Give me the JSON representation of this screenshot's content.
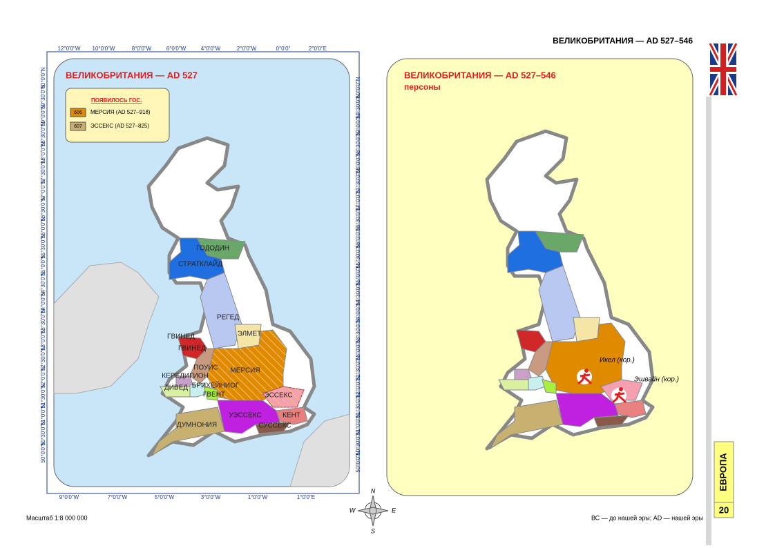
{
  "header": {
    "title": "ВЕЛИКОБРИТАНИЯ — AD 527–546"
  },
  "left_map": {
    "title": "ВЕЛИКОБРИТАНИЯ — AD 527",
    "legend": {
      "title": "ПОЯВИЛОСЬ ГОС.",
      "items": [
        {
          "code": "606",
          "label": "МЕРСИЯ (AD 527–918)"
        },
        {
          "code": "607",
          "label": "ЭССЕКС (AD 527–825)"
        }
      ]
    },
    "regions": [
      "ГОДОДИН",
      "СТРАТКЛАЙД",
      "РЕГЕД",
      "ЭЛМЕТ",
      "ГВИНЕД",
      "ПОУИС",
      "КЕРЕДИГИОН",
      "ДИВЕД",
      "БРИХЕЙНИОГ",
      "ГВЕНТ",
      "МЕРСИЯ",
      "ЭССЕКС",
      "УЭССЕКС",
      "КЕНТ",
      "СУССЕКС",
      "ДУМНОНИЯ"
    ],
    "top_longitudes": [
      "12°0'0\"W",
      "10°0'0\"W",
      "8°0'0\"W",
      "6°0'0\"W",
      "4°0'0\"W",
      "2°0'0\"W",
      "0°0'0\"",
      "2°0'0\"E"
    ],
    "bottom_longitudes": [
      "9°0'0\"W",
      "7°0'0\"W",
      "5°0'0\"W",
      "3°0'0\"W",
      "1°0'0\"W",
      "1°0'0\"E"
    ],
    "latitudes": [
      "60°0'0\"N",
      "59°30'0\"N",
      "59°0'0\"N",
      "58°30'0\"N",
      "58°0'0\"N",
      "57°30'0\"N",
      "57°0'0\"N",
      "56°30'0\"N",
      "56°0'0\"N",
      "55°30'0\"N",
      "55°0'0\"N",
      "54°30'0\"N",
      "54°0'0\"N",
      "53°30'0\"N",
      "53°0'0\"N",
      "52°30'0\"N",
      "52°0'0\"N",
      "51°30'0\"N",
      "51°0'0\"N",
      "50°30'0\"N",
      "50°0'0\"N"
    ]
  },
  "right_map": {
    "title": "ВЕЛИКОБРИТАНИЯ — AD 527–546",
    "subtitle": "персоны",
    "persons": [
      "Икел (кор.)",
      "Эшвайн (кор.)"
    ]
  },
  "compass": [
    "N",
    "W",
    "E",
    "S"
  ],
  "footer": {
    "scale": "Масштаб 1:8 000 000",
    "note": "ВС — до нашей эры; AD — нашей эры",
    "section": "ЕВРОПА",
    "page": "20"
  }
}
